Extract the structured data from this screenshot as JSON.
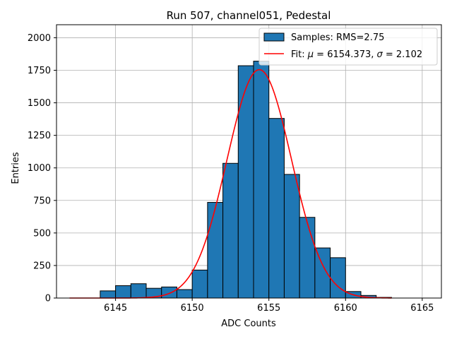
{
  "chart_data": {
    "type": "bar",
    "title": "Run 507, channel051, Pedestal",
    "xlabel": "ADC Counts",
    "ylabel": "Entries",
    "xlim": [
      6141.15,
      6166.25
    ],
    "ylim": [
      0,
      2100
    ],
    "grid": true,
    "legend_position": "upper-right",
    "xticks": [
      6145,
      6150,
      6155,
      6160,
      6165
    ],
    "yticks": [
      0,
      250,
      500,
      750,
      1000,
      1250,
      1500,
      1750,
      2000
    ],
    "histogram": {
      "name": "Samples: RMS=2.75",
      "color": "#1f77b4",
      "edgecolor": "#000000",
      "bin_edges": [
        6142,
        6143,
        6144,
        6145,
        6146,
        6147,
        6148,
        6149,
        6150,
        6151,
        6152,
        6153,
        6154,
        6155,
        6156,
        6157,
        6158,
        6159,
        6160,
        6161,
        6162,
        6163
      ],
      "counts": [
        0,
        0,
        55,
        95,
        110,
        75,
        85,
        65,
        215,
        735,
        1035,
        1785,
        1820,
        1380,
        950,
        620,
        385,
        310,
        50,
        20,
        5
      ]
    },
    "fit": {
      "name": "Fit: μ = 6154.373, σ = 2.102",
      "name_prefix": "Fit: ",
      "mu_symbol": "μ",
      "mu_text": " = 6154.373, ",
      "sigma_symbol": "σ",
      "sigma_text": " = 2.102",
      "color": "#ff0000",
      "mu": 6154.373,
      "sigma": 2.102,
      "amplitude": 1755,
      "x_range": [
        6142,
        6163
      ]
    }
  }
}
